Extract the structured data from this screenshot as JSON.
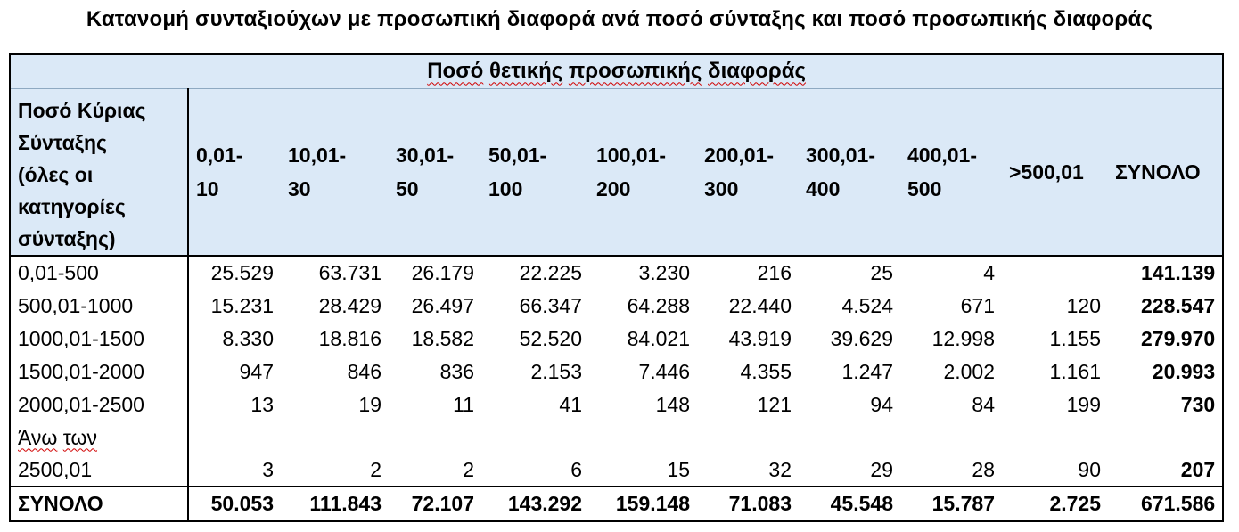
{
  "title": "Κατανομή συνταξιούχων με προσωπική διαφορά ανά ποσό σύνταξης και ποσό προσωπικής διαφοράς",
  "group_header": {
    "w1": "Ποσό",
    "w2": "θετικής",
    "w3": "προσωπικής",
    "w4": "διαφοράς"
  },
  "row_header_lines": [
    "Ποσό Κύριας",
    "Σύνταξης",
    "(όλες οι",
    "κατηγορίες",
    "σύνταξης)"
  ],
  "columns": [
    [
      "0,01-",
      "10"
    ],
    [
      "10,01-",
      "30"
    ],
    [
      "30,01-",
      "50"
    ],
    [
      "50,01-",
      "100"
    ],
    [
      "100,01-",
      "200"
    ],
    [
      "200,01-",
      "300"
    ],
    [
      "300,01-",
      "400"
    ],
    [
      "400,01-",
      "500"
    ],
    [
      ">500,01"
    ],
    [
      "ΣΥΝΟΛΟ"
    ]
  ],
  "rows": [
    {
      "label": "0,01-500",
      "values": [
        "25.529",
        "63.731",
        "26.179",
        "22.225",
        "3.230",
        "216",
        "25",
        "4",
        ""
      ],
      "total": "141.139"
    },
    {
      "label": "500,01-1000",
      "values": [
        "15.231",
        "28.429",
        "26.497",
        "66.347",
        "64.288",
        "22.440",
        "4.524",
        "671",
        "120"
      ],
      "total": "228.547"
    },
    {
      "label": "1000,01-1500",
      "values": [
        "8.330",
        "18.816",
        "18.582",
        "52.520",
        "84.021",
        "43.919",
        "39.629",
        "12.998",
        "1.155"
      ],
      "total": "279.970"
    },
    {
      "label": "1500,01-2000",
      "values": [
        "947",
        "846",
        "836",
        "2.153",
        "7.446",
        "4.355",
        "1.247",
        "2.002",
        "1.161"
      ],
      "total": "20.993"
    },
    {
      "label": "2000,01-2500",
      "values": [
        "13",
        "19",
        "11",
        "41",
        "148",
        "121",
        "94",
        "84",
        "199"
      ],
      "total": "730"
    },
    {
      "label_w1": "Άνω",
      "label_w2": "των",
      "label_line2": "2500,01",
      "values": [
        "3",
        "2",
        "2",
        "6",
        "15",
        "32",
        "29",
        "28",
        "90"
      ],
      "total": "207"
    }
  ],
  "sum_row": {
    "label": "ΣΥΝΟΛΟ",
    "values": [
      "50.053",
      "111.843",
      "72.107",
      "143.292",
      "159.148",
      "71.083",
      "45.548",
      "15.787",
      "2.725"
    ],
    "total": "671.586"
  }
}
